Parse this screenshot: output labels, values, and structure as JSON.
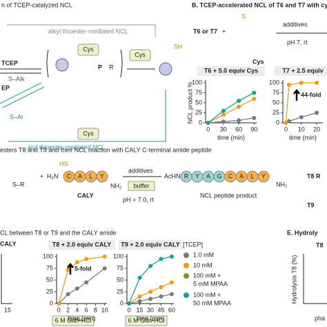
{
  "panel_a": {
    "title": "n of TCEP-catalyzed NCL",
    "alkyl": "alkyl thioester-mediated NCL",
    "cys_top": "Cys",
    "tcep": "TCEP",
    "s_alk": "S–Alk",
    "tcep_cut": "EP",
    "s_ar": "S–Ar",
    "cys_bottom": "Cys",
    "aryl": "aryl thioester-mediated NCL",
    "cys_mid": "Cys",
    "sh": "SH",
    "p": "P",
    "r": "R"
  },
  "panel_b": {
    "title": "B. TCEP-accelerated NCL of T6 and T7 with cyste",
    "reactants": "T6 or T7",
    "plus": "+",
    "additives": "additives",
    "conditions": "pH 7, rt",
    "cys": "Cys",
    "s": "S"
  },
  "panel_c": {
    "title": "esters T8 and T9 and their NCL reaction with CALY C-terminal amide peptide",
    "sr": "S–R",
    "plus": "+",
    "h2n": "H₂N",
    "seq1": [
      "C",
      "A",
      "L",
      "Y"
    ],
    "nh2": "NH₂",
    "caly": "CALY",
    "additives": "additives",
    "buffer": "buffer",
    "conditions": "pH = 7.0, rt",
    "achn": "AcHN",
    "seq2": [
      "R",
      "Y",
      "A",
      "G",
      "C",
      "A",
      "L",
      "Y"
    ],
    "nh2_b": "NH₂",
    "product": "NCL peptide product",
    "t8": "T8 R",
    "t9": "T9",
    "hs": "HS"
  },
  "panel_d": {
    "title": "CL between T8 or T9 and the CALY amide",
    "caly_cut": "CALY",
    "tick_cut": "15",
    "gdn1": "6 M Gdn•HCl",
    "gdn2": "6 M Gdn•HCl",
    "legend_title": "[TCEP]",
    "legend": [
      {
        "label": "1.0 mM",
        "color": "#7a7a7a"
      },
      {
        "label": "10 mM",
        "color": "#f39c12"
      },
      {
        "label": "100 mM +",
        "label2": "5 mM MPAA",
        "color": "#8c8c22"
      },
      {
        "label": "100 mM +",
        "label2": "50 mM MPAA",
        "color": "#16a196"
      }
    ]
  },
  "panel_e": {
    "title": "E. Hydroly",
    "t8": "T8",
    "ylabel": "Hydrolysis T8 (%)",
    "pha": "pha"
  },
  "chart_data": [
    {
      "type": "line",
      "title": "T6 + 5.0 equiv Cys",
      "ylabel": "NCL product %",
      "xlabel": "time (min)",
      "x": [
        0,
        30,
        60,
        90
      ],
      "xlim": [
        -5,
        95
      ],
      "xticks": [
        0,
        30,
        60,
        90
      ],
      "ylim": [
        0,
        100
      ],
      "yticks": [
        0,
        25,
        50,
        75,
        100
      ],
      "series": [
        {
          "color": "#7a7a7a",
          "values": [
            0,
            3,
            6,
            12
          ]
        },
        {
          "color": "#f39c12",
          "values": [
            0,
            20,
            40,
            60
          ]
        },
        {
          "color": "#16a196",
          "values": [
            0,
            30,
            55,
            75
          ]
        }
      ]
    },
    {
      "type": "line",
      "title": "T7 + 2.5 equiv",
      "xlabel": "time (min)",
      "annotation": "44-fold",
      "x": [
        0,
        2,
        10,
        20
      ],
      "xlim": [
        -2,
        24
      ],
      "xticks": [
        0,
        10,
        20
      ],
      "ylim": [
        0,
        100
      ],
      "yticks": [
        0,
        25,
        50,
        75,
        100
      ],
      "series": [
        {
          "color": "#7a7a7a",
          "values": [
            0,
            4,
            14,
            25
          ]
        },
        {
          "color": "#f39c12",
          "values": [
            0,
            95,
            100,
            100
          ]
        }
      ]
    },
    {
      "type": "line",
      "title": "T8 + 2.0 equiv CALY",
      "xlabel": "time (min)",
      "annotation": "5-fold",
      "x": [
        0,
        2,
        4,
        6,
        10
      ],
      "xlim": [
        -0.5,
        10.5
      ],
      "xticks": [
        0,
        2,
        4,
        6,
        8,
        10
      ],
      "ylim": [
        0,
        100
      ],
      "yticks": [
        0,
        25,
        50,
        75,
        100
      ],
      "series": [
        {
          "color": "#7a7a7a",
          "values": [
            0,
            20,
            32,
            45,
            75
          ]
        },
        {
          "color": "#f39c12",
          "values": [
            0,
            72,
            88,
            95,
            100
          ]
        }
      ]
    },
    {
      "type": "line",
      "title": "T9 + 2.0 equiv CALY",
      "xlabel": "time (min)",
      "x": [
        0,
        15,
        30,
        45,
        60
      ],
      "xlim": [
        -3,
        63
      ],
      "xticks": [
        0,
        15,
        30,
        45,
        60
      ],
      "ylim": [
        0,
        100
      ],
      "yticks": [
        0,
        25,
        50,
        75,
        100
      ],
      "series": [
        {
          "color": "#7a7a7a",
          "values": [
            0,
            5,
            10,
            15,
            20
          ]
        },
        {
          "color": "#f39c12",
          "values": [
            0,
            15,
            25,
            35,
            45
          ]
        },
        {
          "color": "#16a196",
          "values": [
            0,
            55,
            80,
            95,
            100
          ]
        }
      ]
    }
  ]
}
